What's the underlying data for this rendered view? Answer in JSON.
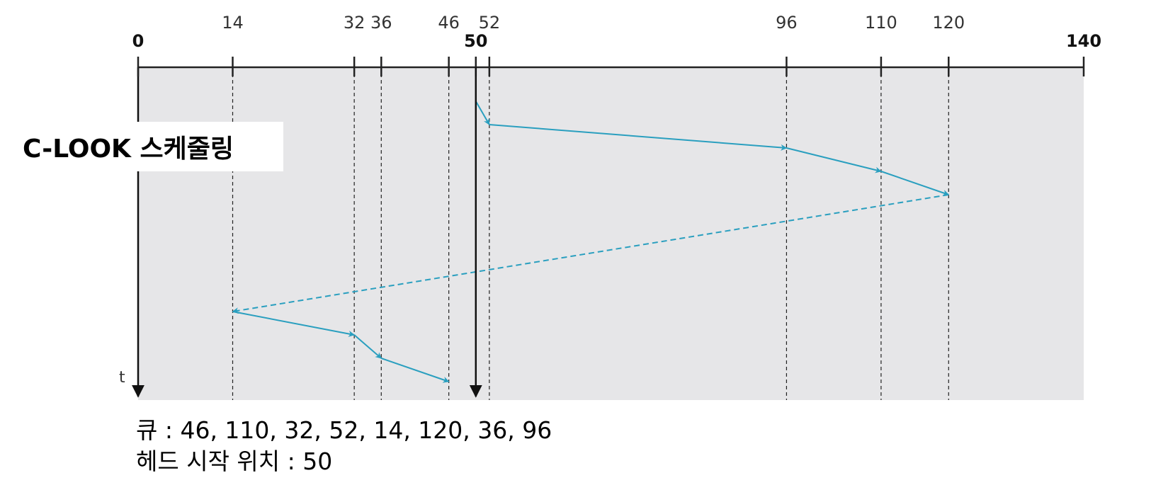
{
  "title": "C-LOOK 스케줄링",
  "axis": {
    "ticks": [
      0,
      14,
      32,
      36,
      46,
      50,
      52,
      96,
      110,
      120,
      140
    ],
    "time_label": "t"
  },
  "head_path": [
    50,
    52,
    96,
    110,
    120,
    14,
    32,
    36,
    46
  ],
  "queue": "큐 : 46, 110, 32, 52, 14, 120, 36, 96",
  "head_start": "헤드 시작 위치 : 50"
}
